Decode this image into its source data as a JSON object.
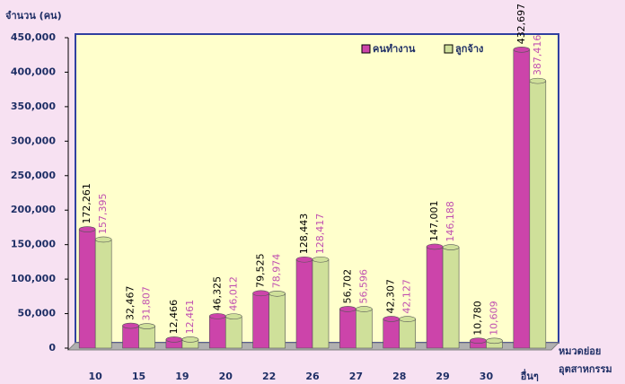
{
  "chart_data": {
    "type": "bar",
    "y_label": "จำนวน (คน)",
    "x_label": [
      "หมวดย่อย",
      "อุตสาหกรรม"
    ],
    "categories": [
      "10",
      "15",
      "19",
      "20",
      "22",
      "26",
      "27",
      "28",
      "29",
      "30",
      "อื่นๆ"
    ],
    "series": [
      {
        "name": "คนทำงาน",
        "color": "#cc44aa",
        "label_color": "#000000",
        "values": [
          172261,
          32467,
          12466,
          46325,
          79525,
          128443,
          56702,
          42307,
          147001,
          10780,
          432697
        ],
        "value_labels": [
          "172,261",
          "32,467",
          "12,466",
          "46,325",
          "79,525",
          "128,443",
          "56,702",
          "42,307",
          "147,001",
          "10,780",
          "432,697"
        ]
      },
      {
        "name": "ลูกจ้าง",
        "color": "#cfe09a",
        "label_color": "#c050b0",
        "values": [
          157395,
          31807,
          12461,
          46012,
          78974,
          128417,
          56596,
          42127,
          146188,
          10609,
          387416
        ],
        "value_labels": [
          "157,395",
          "31,807",
          "12,461",
          "46,012",
          "78,974",
          "128,417",
          "56,596",
          "42,127",
          "146,188",
          "10,609",
          "387,416"
        ]
      }
    ],
    "ylim": [
      0,
      450000
    ],
    "yticks": [
      0,
      {
        "value": 50000,
        "label": "50,000"
      },
      {
        "value": 100000,
        "label": "100,000"
      },
      {
        "value": 150000,
        "label": "150,000"
      },
      {
        "value": 200000,
        "label": "200,000"
      },
      {
        "value": 250000,
        "label": "250,000"
      },
      {
        "value": 300000,
        "label": "300,000"
      },
      {
        "value": 350000,
        "label": "350,000"
      },
      {
        "value": 400000,
        "label": "400,000"
      },
      {
        "value": 450000,
        "label": "450,000"
      }
    ],
    "legend": "top-right"
  }
}
